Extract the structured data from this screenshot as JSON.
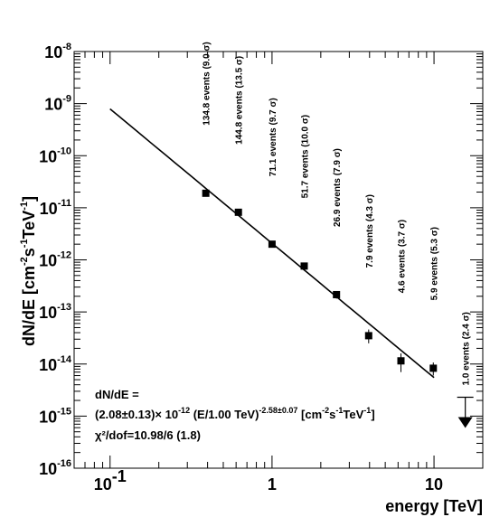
{
  "chart_data": {
    "type": "scatter",
    "x_scale": "log",
    "y_scale": "log",
    "xlim": [
      0.06,
      20
    ],
    "ylim": [
      1e-16,
      1e-08
    ],
    "xlabel": "energy [TeV]",
    "ylabel": "dN/dE [cm^{-2}s^{-1}TeV^{-1}]",
    "ylabel_parts": [
      "dN/dE [cm",
      "-2",
      "s",
      "-1",
      "TeV",
      "-1",
      "]"
    ],
    "x_ticks": [
      {
        "value": 0.1,
        "base": "10",
        "exp": "-1"
      },
      {
        "value": 1,
        "base": "1",
        "exp": ""
      },
      {
        "value": 10,
        "base": "10",
        "exp": ""
      }
    ],
    "y_ticks": [
      {
        "value": 1e-16,
        "base": "10",
        "exp": "-16"
      },
      {
        "value": 1e-15,
        "base": "10",
        "exp": "-15"
      },
      {
        "value": 1e-14,
        "base": "10",
        "exp": "-14"
      },
      {
        "value": 1e-13,
        "base": "10",
        "exp": "-13"
      },
      {
        "value": 1e-12,
        "base": "10",
        "exp": "-12"
      },
      {
        "value": 1e-11,
        "base": "10",
        "exp": "-11"
      },
      {
        "value": 1e-10,
        "base": "10",
        "exp": "-10"
      },
      {
        "value": 1e-09,
        "base": "10",
        "exp": "-9"
      },
      {
        "value": 1e-08,
        "base": "10",
        "exp": "-8"
      }
    ],
    "points": [
      {
        "x": 0.39,
        "y": 1.9e-11,
        "yerr_low": 1.7e-11,
        "yerr_high": 2.1e-11,
        "label": "134.8 events (9.0 σ)"
      },
      {
        "x": 0.62,
        "y": 8.2e-12,
        "yerr_low": 7.5e-12,
        "yerr_high": 8.9e-12,
        "label": "144.8 events (13.5 σ)"
      },
      {
        "x": 1.0,
        "y": 2e-12,
        "yerr_low": 1.75e-12,
        "yerr_high": 2.25e-12,
        "label": "71.1 events (9.7 σ)"
      },
      {
        "x": 1.58,
        "y": 7.6e-13,
        "yerr_low": 6.6e-13,
        "yerr_high": 8.6e-13,
        "label": "51.7 events (10.0 σ)"
      },
      {
        "x": 2.5,
        "y": 2.15e-13,
        "yerr_low": 1.8e-13,
        "yerr_high": 2.5e-13,
        "label": "26.9 events (7.9 σ)"
      },
      {
        "x": 3.95,
        "y": 3.5e-14,
        "yerr_low": 2.5e-14,
        "yerr_high": 4.6e-14,
        "label": "7.9 events (4.3 σ)"
      },
      {
        "x": 6.25,
        "y": 1.15e-14,
        "yerr_low": 7e-15,
        "yerr_high": 1.6e-14,
        "label": "4.6 events (3.7 σ)"
      },
      {
        "x": 9.9,
        "y": 8.3e-15,
        "yerr_low": 6e-15,
        "yerr_high": 1.07e-14,
        "label": "5.9 events (5.3 σ)"
      }
    ],
    "upper_limit": {
      "x": 15.6,
      "y": 2.3e-15,
      "label": "1.0 events (2.4 σ)"
    },
    "fit": {
      "norm": 2.08e-12,
      "index": -2.58,
      "e0": 1.0,
      "x_range": [
        0.1,
        10
      ],
      "formula_line1": "dN/dE =",
      "formula_line2_parts": [
        "(2.08±0.13)× 10",
        "-12",
        " (E/1.00 TeV)",
        "-2.58±0.07",
        " [cm",
        "-2",
        "s",
        "-1",
        "TeV",
        "-1",
        "]"
      ],
      "formula_line3": "χ²/dof=10.98/6 (1.8)"
    },
    "grid": false,
    "legend": "none"
  }
}
